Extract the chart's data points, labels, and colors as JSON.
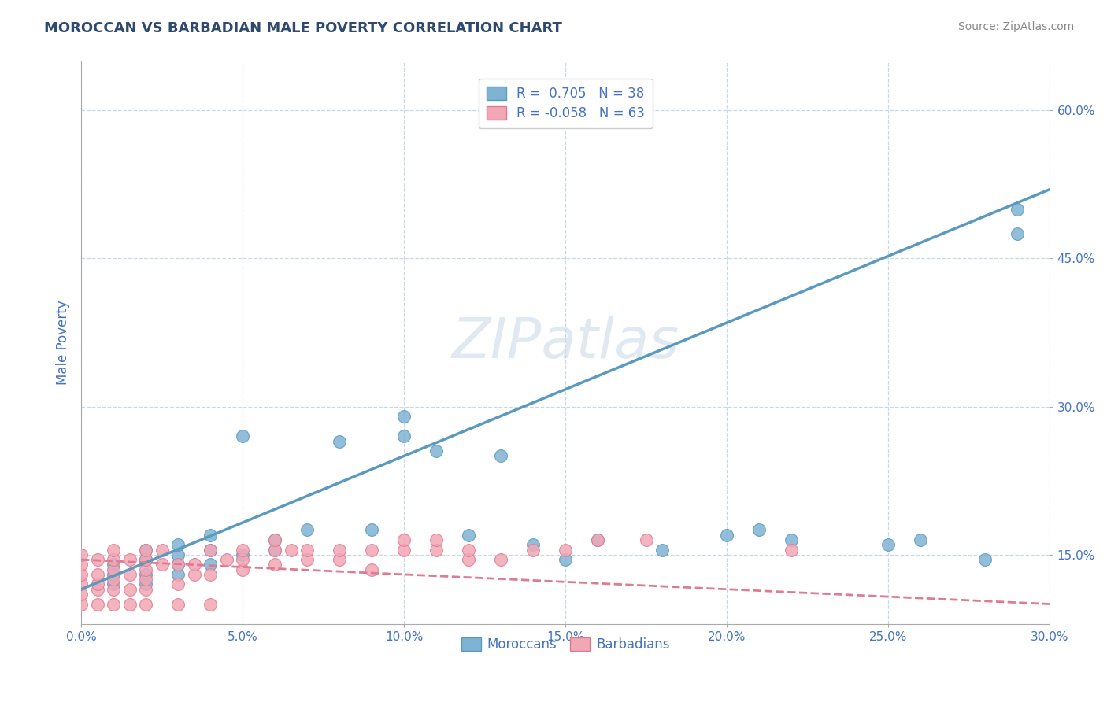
{
  "title": "MOROCCAN VS BARBADIAN MALE POVERTY CORRELATION CHART",
  "source": "Source: ZipAtlas.com",
  "xlabel": "",
  "ylabel": "Male Poverty",
  "xlim": [
    0.0,
    0.3
  ],
  "ylim": [
    0.08,
    0.65
  ],
  "xtick_labels": [
    "0.0%",
    "5.0%",
    "10.0%",
    "15.0%",
    "20.0%",
    "25.0%",
    "30.0%"
  ],
  "xtick_vals": [
    0.0,
    0.05,
    0.1,
    0.15,
    0.2,
    0.25,
    0.3
  ],
  "ytick_labels": [
    "15.0%",
    "30.0%",
    "45.0%",
    "60.0%"
  ],
  "ytick_vals": [
    0.15,
    0.3,
    0.45,
    0.6
  ],
  "moroccan_color": "#7fb3d3",
  "barbadian_color": "#f1a7b5",
  "moroccan_edge": "#5a9abf",
  "barbadian_edge": "#e07a90",
  "moroccan_R": 0.705,
  "moroccan_N": 38,
  "barbadian_R": -0.058,
  "barbadian_N": 63,
  "legend_text_color": "#4472c4",
  "title_color": "#2e4a6e",
  "axis_label_color": "#4472c4",
  "background_color": "#ffffff",
  "grid_color": "#c8d8e8",
  "watermark": "ZIPatlas",
  "moroccan_scatter_x": [
    0.01,
    0.01,
    0.01,
    0.02,
    0.02,
    0.02,
    0.02,
    0.03,
    0.03,
    0.03,
    0.03,
    0.04,
    0.04,
    0.04,
    0.05,
    0.05,
    0.06,
    0.06,
    0.07,
    0.08,
    0.09,
    0.1,
    0.1,
    0.11,
    0.12,
    0.13,
    0.14,
    0.15,
    0.16,
    0.18,
    0.2,
    0.21,
    0.22,
    0.25,
    0.26,
    0.28,
    0.29,
    0.29
  ],
  "moroccan_scatter_y": [
    0.12,
    0.13,
    0.14,
    0.12,
    0.13,
    0.145,
    0.155,
    0.13,
    0.14,
    0.15,
    0.16,
    0.14,
    0.155,
    0.17,
    0.15,
    0.27,
    0.155,
    0.165,
    0.175,
    0.265,
    0.175,
    0.27,
    0.29,
    0.255,
    0.17,
    0.25,
    0.16,
    0.145,
    0.165,
    0.155,
    0.17,
    0.175,
    0.165,
    0.16,
    0.165,
    0.145,
    0.475,
    0.5
  ],
  "barbadian_scatter_x": [
    0.0,
    0.0,
    0.0,
    0.0,
    0.0,
    0.0,
    0.005,
    0.005,
    0.005,
    0.005,
    0.005,
    0.01,
    0.01,
    0.01,
    0.01,
    0.01,
    0.01,
    0.015,
    0.015,
    0.015,
    0.015,
    0.02,
    0.02,
    0.02,
    0.02,
    0.02,
    0.02,
    0.025,
    0.025,
    0.03,
    0.03,
    0.03,
    0.035,
    0.035,
    0.04,
    0.04,
    0.04,
    0.045,
    0.05,
    0.05,
    0.05,
    0.06,
    0.06,
    0.06,
    0.065,
    0.07,
    0.07,
    0.08,
    0.08,
    0.09,
    0.09,
    0.1,
    0.1,
    0.11,
    0.11,
    0.12,
    0.12,
    0.13,
    0.14,
    0.15,
    0.16,
    0.175,
    0.22
  ],
  "barbadian_scatter_y": [
    0.1,
    0.11,
    0.12,
    0.13,
    0.14,
    0.15,
    0.1,
    0.115,
    0.12,
    0.13,
    0.145,
    0.1,
    0.115,
    0.125,
    0.135,
    0.145,
    0.155,
    0.1,
    0.115,
    0.13,
    0.145,
    0.1,
    0.115,
    0.125,
    0.135,
    0.145,
    0.155,
    0.14,
    0.155,
    0.1,
    0.12,
    0.14,
    0.13,
    0.14,
    0.1,
    0.13,
    0.155,
    0.145,
    0.135,
    0.145,
    0.155,
    0.14,
    0.155,
    0.165,
    0.155,
    0.145,
    0.155,
    0.145,
    0.155,
    0.135,
    0.155,
    0.155,
    0.165,
    0.155,
    0.165,
    0.145,
    0.155,
    0.145,
    0.155,
    0.155,
    0.165,
    0.165,
    0.155
  ],
  "moroccan_line_x": [
    0.0,
    0.3
  ],
  "moroccan_line_y": [
    0.115,
    0.52
  ],
  "barbadian_line_x": [
    0.0,
    0.3
  ],
  "barbadian_line_y": [
    0.145,
    0.1
  ]
}
